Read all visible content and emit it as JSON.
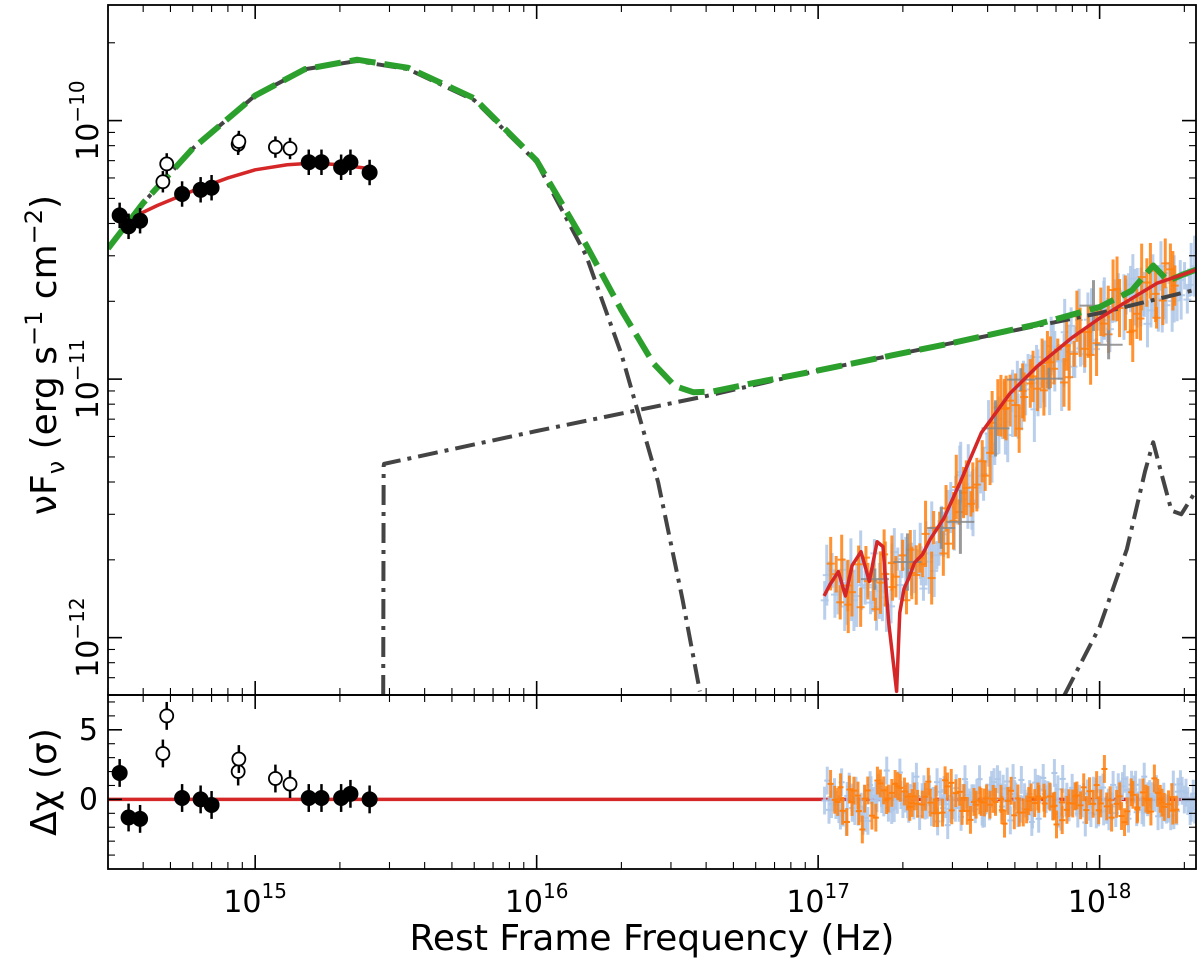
{
  "chart_data": {
    "type": "scatter",
    "xlabel": "Rest Frame Frequency (Hz)",
    "x_scale": "log",
    "xlim": [
      300000000000000.0,
      2.2e+18
    ],
    "x_ticks": [
      {
        "value": 1000000000000000.0,
        "base": "10",
        "exp": "15"
      },
      {
        "value": 1e+16,
        "base": "10",
        "exp": "16"
      },
      {
        "value": 1e+17,
        "base": "10",
        "exp": "17"
      },
      {
        "value": 1e+18,
        "base": "10",
        "exp": "18"
      }
    ],
    "panels": [
      {
        "name": "sed",
        "ylabel": {
          "a": "νF",
          "sub": "ν",
          "b": " (erg s",
          "sup1": "−1",
          "c": " cm",
          "sup2": "−2",
          "d": ")"
        },
        "y_scale": "log",
        "ylim": [
          6e-13,
          2.8e-10
        ],
        "y_ticks": [
          {
            "value": 1e-10,
            "base": "10",
            "exp": "−10"
          },
          {
            "value": 1e-11,
            "base": "10",
            "exp": "−11"
          },
          {
            "value": 1e-12,
            "base": "10",
            "exp": "−12"
          }
        ],
        "series": [
          {
            "kind": "points-filled",
            "color": "#000000",
            "x": [
              330000000000000.0,
              355000000000000.0,
              390000000000000.0,
              550000000000000.0,
              640000000000000.0,
              700000000000000.0,
              1550000000000000.0,
              1720000000000000.0,
              2020000000000000.0,
              2180000000000000.0,
              2550000000000000.0
            ],
            "y": [
              4.3e-11,
              3.9e-11,
              4.1e-11,
              5.2e-11,
              5.4e-11,
              5.5e-11,
              6.9e-11,
              6.9e-11,
              6.6e-11,
              6.9e-11,
              6.3e-11
            ],
            "err_factor": 1.12
          },
          {
            "kind": "points-open",
            "color": "#000000",
            "x": [
              470000000000000.0,
              485000000000000.0,
              870000000000000.0,
              875000000000000.0,
              1180000000000000.0,
              1330000000000000.0
            ],
            "y": [
              5.8e-11,
              6.8e-11,
              8.1e-11,
              8.3e-11,
              7.9e-11,
              7.8e-11
            ],
            "err_factor": 1.1
          },
          {
            "kind": "line",
            "style": "solid",
            "color": "#d62728",
            "x": [
              330000000000000.0,
              450000000000000.0,
              600000000000000.0,
              800000000000000.0,
              1000000000000000.0,
              1300000000000000.0,
              1600000000000000.0,
              2000000000000000.0,
              2600000000000000.0
            ],
            "y": [
              4e-11,
              4.7e-11,
              5.35e-11,
              6e-11,
              6.45e-11,
              6.75e-11,
              6.85e-11,
              6.75e-11,
              6.5e-11
            ]
          },
          {
            "kind": "line",
            "style": "dashdot",
            "color": "#444444",
            "x": [
              300000000000000.0,
              400000000000000.0,
              600000000000000.0,
              1000000000000000.0,
              1500000000000000.0,
              2300000000000000.0,
              3500000000000000.0,
              6000000000000000.0,
              1e+16,
              1.5e+16,
              2e+16,
              2.7e+16,
              3.3e+16,
              3.8e+16
            ],
            "y": [
              3.2e-11,
              4.8e-11,
              7.8e-11,
              1.25e-10,
              1.58e-10,
              1.7e-10,
              1.58e-10,
              1.2e-10,
              6.9e-11,
              3e-11,
              1.25e-11,
              4e-12,
              1.4e-12,
              6.2e-13
            ]
          },
          {
            "kind": "line",
            "style": "dashdot",
            "color": "#444444",
            "x": [
              2850000000000000.0,
              2860000000000000.0,
              2870000000000000.0,
              1e+16,
              4e+16,
              1e+17,
              3e+17,
              1e+18,
              2.2e+18
            ],
            "y": [
              6e-13,
              4.6e-12,
              4.7e-12,
              6.3e-12,
              8.6e-12,
              1.08e-11,
              1.38e-11,
              1.8e-11,
              2.22e-11
            ]
          },
          {
            "kind": "line",
            "style": "dashdot",
            "color": "#444444",
            "x": [
              7.5e+17,
              1e+18,
              1.25e+18,
              1.45e+18,
              1.55e+18,
              1.65e+18,
              1.8e+18,
              1.95e+18,
              2.2e+18
            ],
            "y": [
              6e-13,
              1.1e-12,
              2.2e-12,
              4.4e-12,
              5.7e-12,
              4.4e-12,
              3.1e-12,
              3e-12,
              3.7e-12
            ]
          },
          {
            "kind": "line",
            "style": "dashed",
            "color": "#2ca02c",
            "x": [
              300000000000000.0,
              400000000000000.0,
              600000000000000.0,
              1000000000000000.0,
              1500000000000000.0,
              2300000000000000.0,
              3500000000000000.0,
              6000000000000000.0,
              1e+16,
              1.5e+16,
              2e+16,
              2.6e+16,
              3.1e+16,
              3.6e+16,
              4.2e+16,
              6e+16,
              1e+17,
              3e+17,
              6e+17,
              1e+18,
              1.3e+18,
              1.55e+18,
              1.75e+18,
              2e+18,
              2.2e+18
            ],
            "y": [
              3.2e-11,
              4.8e-11,
              7.8e-11,
              1.25e-10,
              1.58e-10,
              1.72e-10,
              1.6e-10,
              1.22e-10,
              7e-11,
              3.3e-11,
              1.85e-11,
              1.15e-11,
              9.4e-12,
              8.9e-12,
              8.95e-12,
              9.7e-12,
              1.08e-11,
              1.38e-11,
              1.63e-11,
              1.9e-11,
              2.2e-11,
              2.75e-11,
              2.4e-11,
              2.55e-11,
              2.65e-11
            ]
          },
          {
            "kind": "line",
            "style": "solid",
            "color": "#d62728",
            "x": [
              1.05e+17,
              1.1e+17,
              1.18e+17,
              1.25e+17,
              1.32e+17,
              1.42e+17,
              1.52e+17,
              1.62e+17,
              1.7e+17,
              1.78e+17,
              1.85e+17,
              1.9e+17,
              1.95e+17,
              2.02e+17,
              2.1e+17,
              2.2e+17,
              2.35e+17,
              2.5e+17,
              2.8e+17,
              3.2e+17,
              3.8e+17,
              4.8e+17,
              6e+17,
              8e+17,
              1e+18,
              1.3e+18,
              1.6e+18,
              2e+18,
              2.2e+18
            ],
            "y": [
              1.45e-12,
              1.6e-12,
              1.8e-12,
              1.45e-12,
              1.9e-12,
              2.15e-12,
              1.65e-12,
              2.35e-12,
              2.25e-12,
              1.15e-12,
              8e-13,
              6.2e-13,
              1.25e-12,
              1.55e-12,
              1.7e-12,
              1.95e-12,
              2.1e-12,
              2.4e-12,
              2.9e-12,
              4e-12,
              6.2e-12,
              8.8e-12,
              1.12e-11,
              1.45e-11,
              1.72e-11,
              2.05e-11,
              2.35e-11,
              2.55e-11,
              2.65e-11
            ]
          }
        ],
        "xray_data": [
          {
            "color": "#aec7e8",
            "n": 150,
            "x_start": 1.05e+17,
            "x_end": 2.2e+18,
            "seed": 11
          },
          {
            "color": "#ff7f0e",
            "n": 95,
            "x_start": 1.1e+17,
            "x_end": 1.9e+18,
            "seed": 29
          },
          {
            "color": "#888888",
            "n": 9,
            "x_start": 1.5e+17,
            "x_end": 1.2e+18,
            "seed": 47
          }
        ]
      },
      {
        "name": "residuals",
        "ylabel": {
          "a": "Δχ (σ)"
        },
        "y_scale": "linear",
        "ylim": [
          -5.0,
          7.5
        ],
        "y_ticks": [
          {
            "value": 5,
            "label": "5"
          },
          {
            "value": 0,
            "label": "0"
          }
        ],
        "zero_line_color": "#d62728",
        "series": [
          {
            "kind": "points-filled",
            "color": "#000000",
            "x": [
              330000000000000.0,
              355000000000000.0,
              390000000000000.0,
              550000000000000.0,
              640000000000000.0,
              700000000000000.0,
              1550000000000000.0,
              1720000000000000.0,
              2020000000000000.0,
              2180000000000000.0,
              2550000000000000.0
            ],
            "y": [
              1.9,
              -1.3,
              -1.4,
              0.1,
              0.0,
              -0.4,
              0.1,
              0.1,
              0.1,
              0.4,
              0.0
            ],
            "err": 1.0
          },
          {
            "kind": "points-open",
            "color": "#000000",
            "x": [
              470000000000000.0,
              485000000000000.0,
              870000000000000.0,
              875000000000000.0,
              1180000000000000.0,
              1330000000000000.0
            ],
            "y": [
              3.3,
              6.0,
              2.0,
              2.9,
              1.5,
              1.1
            ],
            "err": 1.0
          }
        ],
        "xray_data": [
          {
            "color": "#aec7e8",
            "n": 200,
            "x_start": 1.05e+17,
            "x_end": 2.2e+18,
            "seed": 71
          },
          {
            "color": "#ff7f0e",
            "n": 120,
            "x_start": 1.1e+17,
            "x_end": 1.9e+18,
            "seed": 83
          }
        ]
      }
    ]
  }
}
